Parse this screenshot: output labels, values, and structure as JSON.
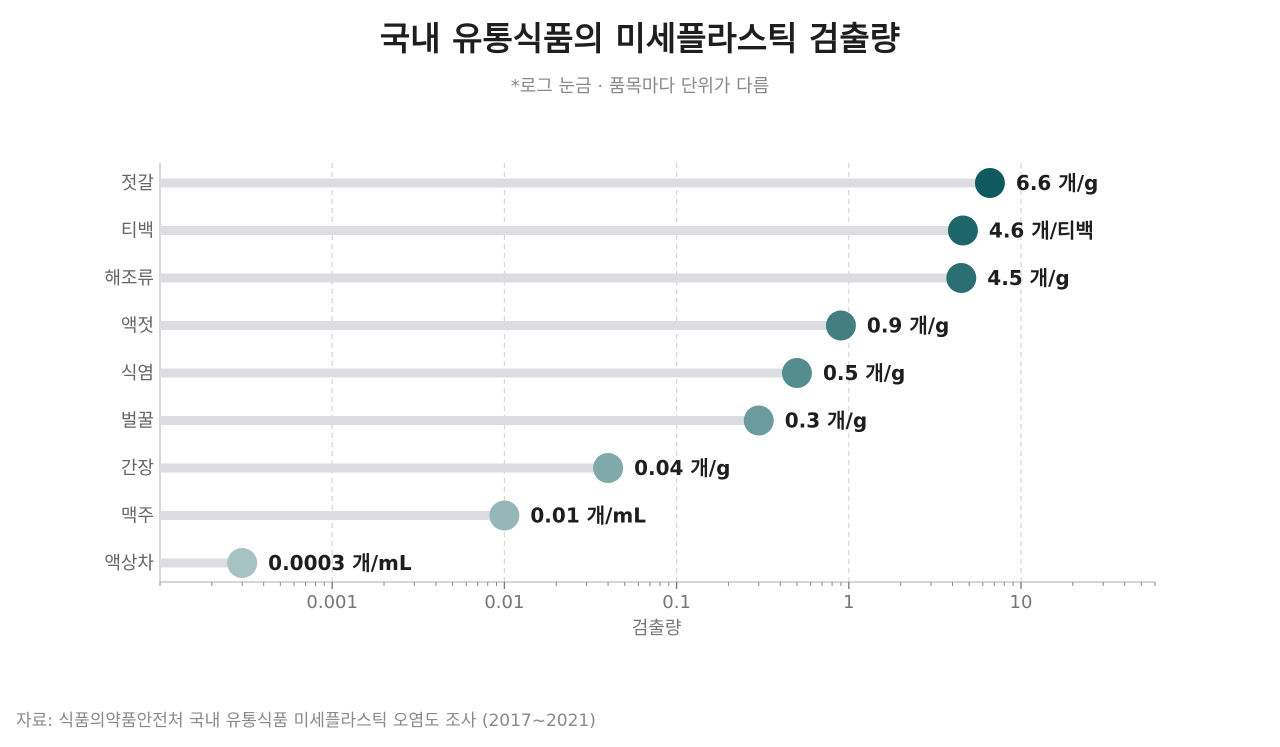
{
  "header": {
    "title": "국내 유통식품의 미세플라스틱 검출량",
    "subtitle": "*로그 눈금 · 품목마다 단위가 다름"
  },
  "source": "자료: 식품의약품안전처 국내 유통식품 미세플라스틱 오염도 조사 (2017~2021)",
  "chart_data": {
    "type": "scatter",
    "style": "lollipop",
    "xscale": "log",
    "xlim": [
      0.0001,
      60
    ],
    "xlabel": "검출량",
    "xticks": [
      0.001,
      0.01,
      0.1,
      1,
      10
    ],
    "xtick_labels": [
      "0.001",
      "0.01",
      "0.1",
      "1",
      "10"
    ],
    "grid": "vertical dashed",
    "categories": [
      "젓갈",
      "티백",
      "해조류",
      "액젓",
      "식염",
      "벌꿀",
      "간장",
      "맥주",
      "액상차"
    ],
    "values": [
      6.6,
      4.6,
      4.5,
      0.9,
      0.5,
      0.3,
      0.04,
      0.01,
      0.0003
    ],
    "labels": [
      "6.6 개/g",
      "4.6 개/티백",
      "4.5 개/g",
      "0.9 개/g",
      "0.5 개/g",
      "0.3 개/g",
      "0.04 개/g",
      "0.01 개/mL",
      "0.0003 개/mL"
    ],
    "colors": [
      "#0e5a5f",
      "#1d6569",
      "#2c6f73",
      "#437f82",
      "#558c8e",
      "#6b9b9c",
      "#80a9aa",
      "#96b7b8",
      "#a6c2c3"
    ]
  }
}
